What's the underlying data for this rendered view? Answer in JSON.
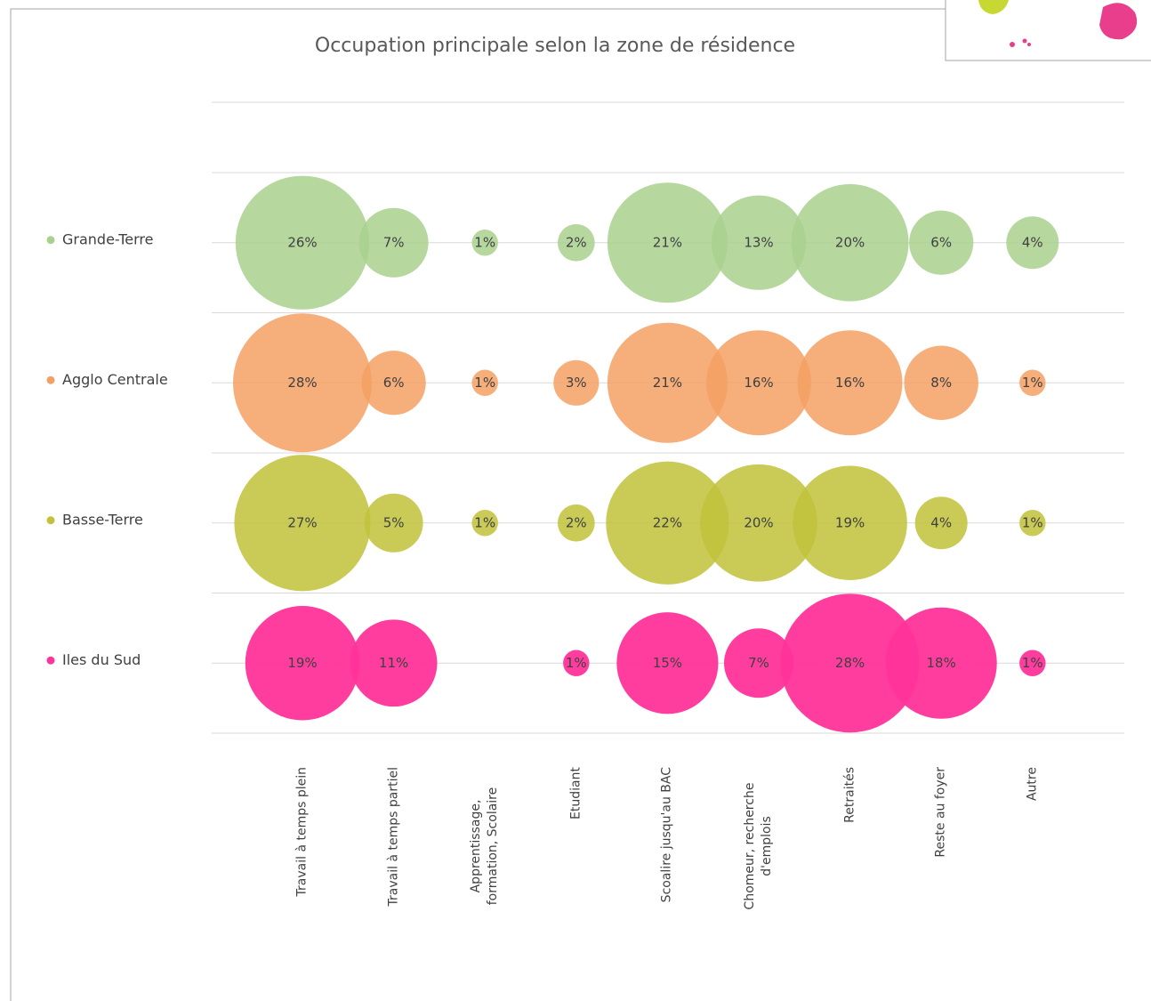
{
  "chart_data": {
    "type": "bubble",
    "title": "Occupation principale selon la zone de résidence",
    "categories": [
      "Travail à temps plein",
      "Travail à temps partiel",
      "Apprentissage, formation, Scolaire",
      "Etudiant",
      "Scoalire jusqu'au BAC",
      "Chomeur, recherche d'emplois",
      "Retraités",
      "Reste au foyer",
      "Autre"
    ],
    "series": [
      {
        "name": "Grande-Terre",
        "color": "#a9d18e",
        "values": [
          26,
          7,
          1,
          2,
          21,
          13,
          20,
          6,
          4
        ],
        "value_labels": [
          "26%",
          "7%",
          "1%",
          "2%",
          "21%",
          "13%",
          "20%",
          "6%",
          "4%"
        ]
      },
      {
        "name": "Agglo Centrale",
        "color": "#f4a064",
        "values": [
          28,
          6,
          1,
          3,
          21,
          16,
          16,
          8,
          1
        ],
        "value_labels": [
          "28%",
          "6%",
          "1%",
          "3%",
          "21%",
          "16%",
          "16%",
          "8%",
          "1%"
        ]
      },
      {
        "name": "Basse-Terre",
        "color": "#c1c23a",
        "values": [
          27,
          5,
          1,
          2,
          22,
          20,
          19,
          4,
          1
        ],
        "value_labels": [
          "27%",
          "5%",
          "1%",
          "2%",
          "22%",
          "20%",
          "19%",
          "4%",
          "1%"
        ]
      },
      {
        "name": "Iles du Sud",
        "color": "#ff3399",
        "values": [
          19,
          11,
          null,
          1,
          15,
          7,
          28,
          18,
          1
        ],
        "value_labels": [
          "19%",
          "11%",
          null,
          "1%",
          "15%",
          "7%",
          "28%",
          "18%",
          "1%"
        ]
      }
    ],
    "grid": true,
    "legend": "left"
  }
}
